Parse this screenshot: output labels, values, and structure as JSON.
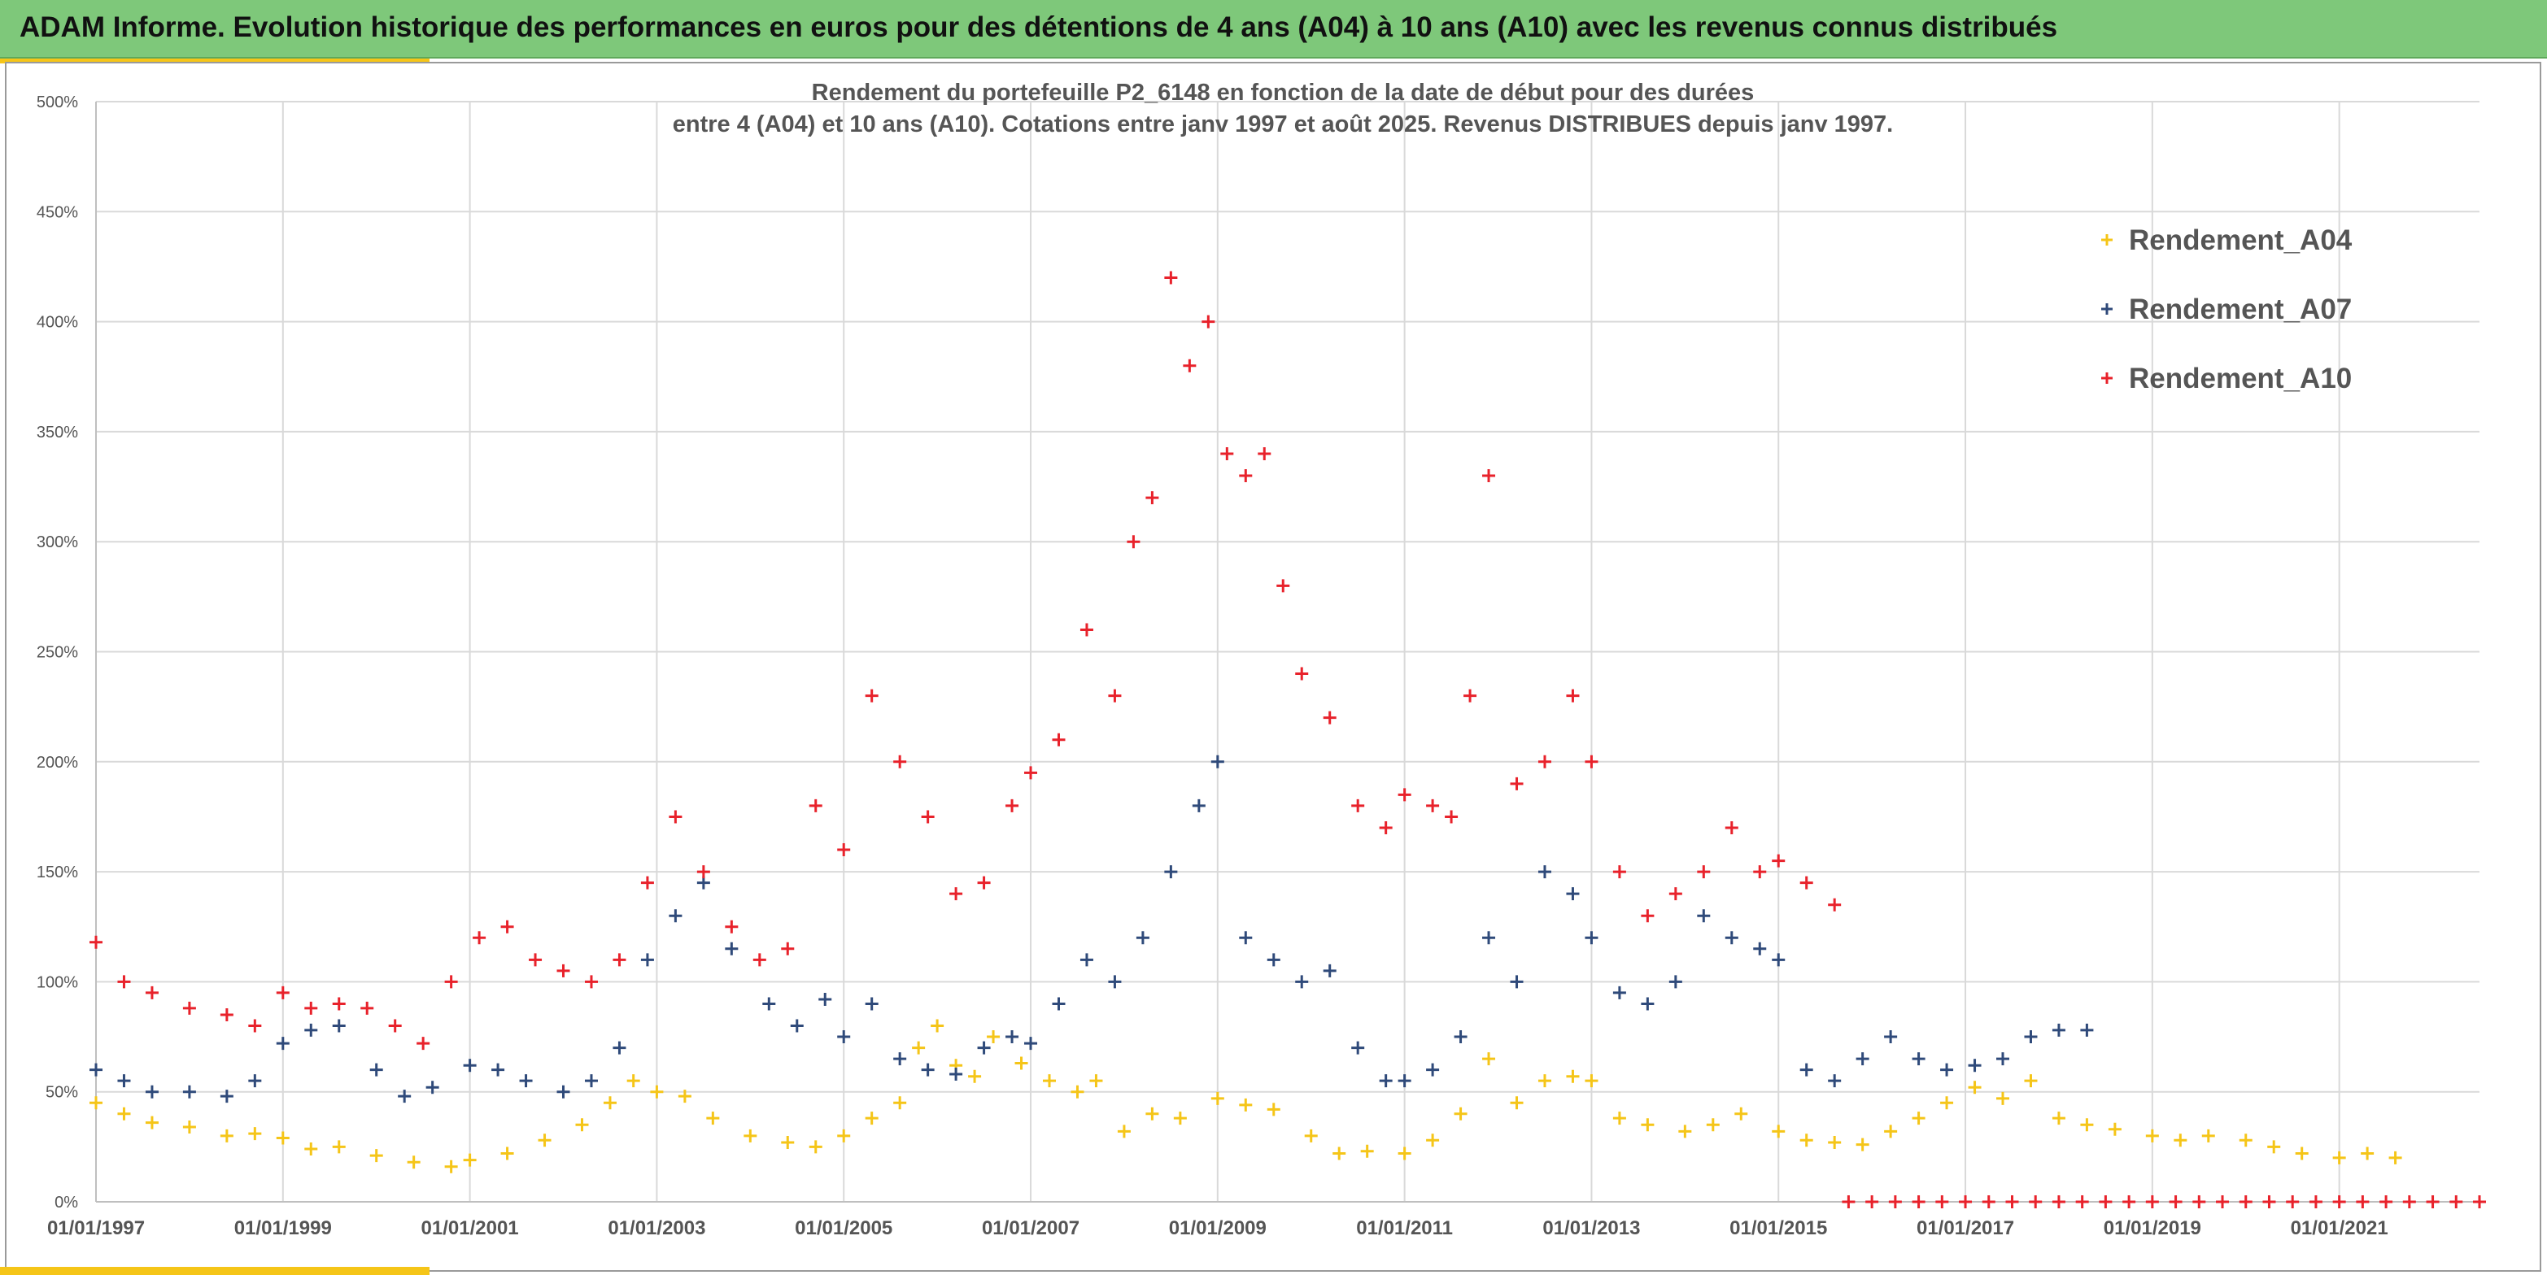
{
  "banner": {
    "title": "ADAM Informe. Evolution historique des performances en euros pour des détentions de 4 ans (A04) à 10 ans (A10) avec les revenus connus distribués"
  },
  "chart_data": {
    "type": "scatter",
    "title_line1": "Rendement du portefeuille P2_6148 en fonction de la date de début pour des durées",
    "title_line2": "entre 4 (A04) et 10 ans (A10). Cotations entre janv 1997 et août 2025. Revenus DISTRIBUES depuis janv 1997.",
    "xlabel": "",
    "ylabel": "",
    "x_range": [
      1997.0,
      2022.5
    ],
    "ylim": [
      0,
      500
    ],
    "y_ticks": [
      0,
      50,
      100,
      150,
      200,
      250,
      300,
      350,
      400,
      450,
      500
    ],
    "y_tick_labels": [
      "0%",
      "50%",
      "100%",
      "150%",
      "200%",
      "250%",
      "300%",
      "350%",
      "400%",
      "450%",
      "500%"
    ],
    "x_ticks": [
      1997,
      1999,
      2001,
      2003,
      2005,
      2007,
      2009,
      2011,
      2013,
      2015,
      2017,
      2019,
      2021
    ],
    "x_tick_labels": [
      "01/01/1997",
      "01/01/1999",
      "01/01/2001",
      "01/01/2003",
      "01/01/2005",
      "01/01/2007",
      "01/01/2009",
      "01/01/2011",
      "01/01/2013",
      "01/01/2015",
      "01/01/2017",
      "01/01/2019",
      "01/01/2021"
    ],
    "grid": true,
    "legend_position": "top-right",
    "marker": "+",
    "series": [
      {
        "name": "Rendement_A04",
        "color": "#f5c518",
        "x": [
          1997.0,
          1997.3,
          1997.6,
          1998.0,
          1998.4,
          1998.7,
          1999.0,
          1999.3,
          1999.6,
          2000.0,
          2000.4,
          2000.8,
          2001.0,
          2001.4,
          2001.8,
          2002.2,
          2002.5,
          2002.75,
          2003.0,
          2003.3,
          2003.6,
          2004.0,
          2004.4,
          2004.7,
          2005.0,
          2005.3,
          2005.6,
          2005.8,
          2006.0,
          2006.2,
          2006.4,
          2006.6,
          2006.9,
          2007.2,
          2007.5,
          2007.7,
          2008.0,
          2008.3,
          2008.6,
          2009.0,
          2009.3,
          2009.6,
          2010.0,
          2010.3,
          2010.6,
          2011.0,
          2011.3,
          2011.6,
          2011.9,
          2012.2,
          2012.5,
          2012.8,
          2013.0,
          2013.3,
          2013.6,
          2014.0,
          2014.3,
          2014.6,
          2015.0,
          2015.3,
          2015.6,
          2015.9,
          2016.2,
          2016.5,
          2016.8,
          2017.1,
          2017.4,
          2017.7,
          2018.0,
          2018.3,
          2018.6,
          2019.0,
          2019.3,
          2019.6,
          2020.0,
          2020.3,
          2020.6,
          2021.0,
          2021.3,
          2021.6
        ],
        "values": [
          45,
          40,
          36,
          34,
          30,
          31,
          29,
          24,
          25,
          21,
          18,
          16,
          19,
          22,
          28,
          35,
          45,
          55,
          50,
          48,
          38,
          30,
          27,
          25,
          30,
          38,
          45,
          70,
          80,
          62,
          57,
          75,
          63,
          55,
          50,
          55,
          32,
          40,
          38,
          47,
          44,
          42,
          30,
          22,
          23,
          22,
          28,
          40,
          65,
          45,
          55,
          57,
          55,
          38,
          35,
          32,
          35,
          40,
          32,
          28,
          27,
          26,
          32,
          38,
          45,
          52,
          47,
          55,
          38,
          35,
          33,
          30,
          28,
          30,
          28,
          25,
          22,
          20,
          22,
          20
        ]
      },
      {
        "name": "Rendement_A07",
        "color": "#2f4a7a",
        "x": [
          1997.0,
          1997.3,
          1997.6,
          1998.0,
          1998.4,
          1998.7,
          1999.0,
          1999.3,
          1999.6,
          2000.0,
          2000.3,
          2000.6,
          2001.0,
          2001.3,
          2001.6,
          2002.0,
          2002.3,
          2002.6,
          2002.9,
          2003.2,
          2003.5,
          2003.8,
          2004.2,
          2004.5,
          2004.8,
          2005.0,
          2005.3,
          2005.6,
          2005.9,
          2006.2,
          2006.5,
          2006.8,
          2007.0,
          2007.3,
          2007.6,
          2007.9,
          2008.2,
          2008.5,
          2008.8,
          2009.0,
          2009.3,
          2009.6,
          2009.9,
          2010.2,
          2010.5,
          2010.8,
          2011.0,
          2011.3,
          2011.6,
          2011.9,
          2012.2,
          2012.5,
          2012.8,
          2013.0,
          2013.3,
          2013.6,
          2013.9,
          2014.2,
          2014.5,
          2014.8,
          2015.0,
          2015.3,
          2015.6,
          2015.9,
          2016.2,
          2016.5,
          2016.8,
          2017.1,
          2017.4,
          2017.7,
          2018.0,
          2018.3
        ],
        "values": [
          60,
          55,
          50,
          50,
          48,
          55,
          72,
          78,
          80,
          60,
          48,
          52,
          62,
          60,
          55,
          50,
          55,
          70,
          110,
          130,
          145,
          115,
          90,
          80,
          92,
          75,
          90,
          65,
          60,
          58,
          70,
          75,
          72,
          90,
          110,
          100,
          120,
          150,
          180,
          200,
          120,
          110,
          100,
          105,
          70,
          55,
          55,
          60,
          75,
          120,
          100,
          150,
          140,
          120,
          95,
          90,
          100,
          130,
          120,
          115,
          110,
          60,
          55,
          65,
          75,
          65,
          60,
          62,
          65,
          75,
          78,
          78
        ]
      },
      {
        "name": "Rendement_A10",
        "color": "#e8222b",
        "x": [
          1997.0,
          1997.3,
          1997.6,
          1998.0,
          1998.4,
          1998.7,
          1999.0,
          1999.3,
          1999.6,
          1999.9,
          2000.2,
          2000.5,
          2000.8,
          2001.1,
          2001.4,
          2001.7,
          2002.0,
          2002.3,
          2002.6,
          2002.9,
          2003.2,
          2003.5,
          2003.8,
          2004.1,
          2004.4,
          2004.7,
          2005.0,
          2005.3,
          2005.6,
          2005.9,
          2006.2,
          2006.5,
          2006.8,
          2007.0,
          2007.3,
          2007.6,
          2007.9,
          2008.1,
          2008.3,
          2008.5,
          2008.7,
          2008.9,
          2009.1,
          2009.3,
          2009.5,
          2009.7,
          2009.9,
          2010.2,
          2010.5,
          2010.8,
          2011.0,
          2011.3,
          2011.5,
          2011.7,
          2011.9,
          2012.2,
          2012.5,
          2012.8,
          2013.0,
          2013.3,
          2013.6,
          2013.9,
          2014.2,
          2014.5,
          2014.8,
          2015.0,
          2015.3,
          2015.6
        ],
        "values": [
          118,
          100,
          95,
          88,
          85,
          80,
          95,
          88,
          90,
          88,
          80,
          72,
          100,
          120,
          125,
          110,
          105,
          100,
          110,
          145,
          175,
          150,
          125,
          110,
          115,
          180,
          160,
          230,
          200,
          175,
          140,
          145,
          180,
          195,
          210,
          260,
          230,
          300,
          320,
          420,
          380,
          400,
          340,
          330,
          340,
          280,
          240,
          220,
          180,
          170,
          185,
          180,
          175,
          230,
          330,
          190,
          200,
          230,
          200,
          150,
          130,
          140,
          150,
          170,
          150,
          155,
          145,
          135
        ]
      },
      {
        "name": "",
        "color": "#e8222b",
        "x": [
          2015.75,
          2016.0,
          2016.25,
          2016.5,
          2016.75,
          2017.0,
          2017.25,
          2017.5,
          2017.75,
          2018.0,
          2018.25,
          2018.5,
          2018.75,
          2019.0,
          2019.25,
          2019.5,
          2019.75,
          2020.0,
          2020.25,
          2020.5,
          2020.75,
          2021.0,
          2021.25,
          2021.5,
          2021.75,
          2022.0,
          2022.25,
          2022.5
        ],
        "values": [
          0,
          0,
          0,
          0,
          0,
          0,
          0,
          0,
          0,
          0,
          0,
          0,
          0,
          0,
          0,
          0,
          0,
          0,
          0,
          0,
          0,
          0,
          0,
          0,
          0,
          0,
          0,
          0
        ]
      }
    ]
  }
}
